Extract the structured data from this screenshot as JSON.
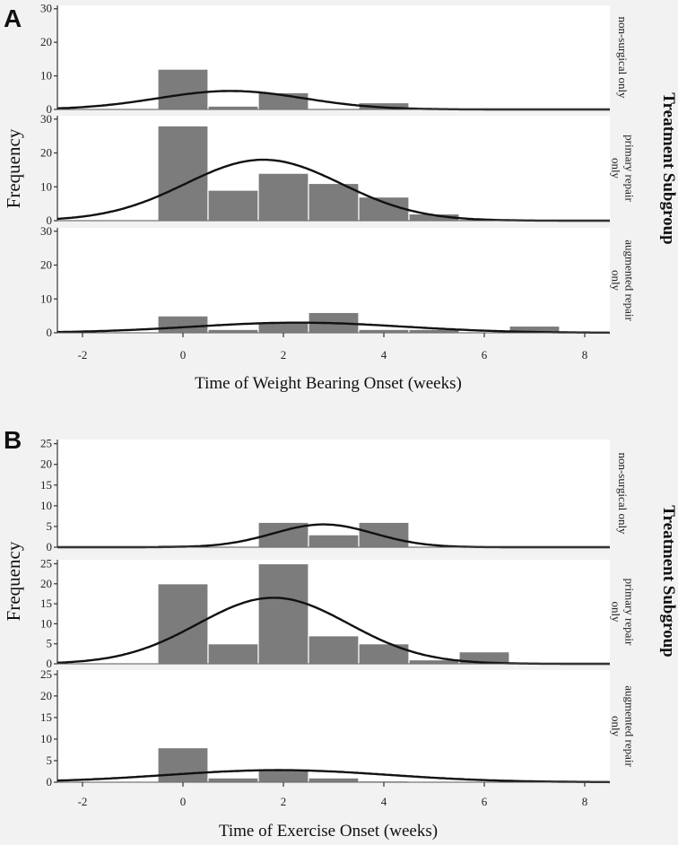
{
  "chart_data": [
    {
      "type": "bar",
      "panel_label": "A",
      "xlabel": "Time of Weight Bearing Onset (weeks)",
      "ylabel": "Frequency",
      "group_title": "Treatment Subgroup",
      "xlim": [
        -2.5,
        8.5
      ],
      "ylim": [
        0,
        31
      ],
      "xticks": [
        -2,
        0,
        2,
        4,
        6,
        8
      ],
      "yticks": [
        0,
        10,
        20,
        30
      ],
      "bin_width": 1,
      "facets": [
        {
          "label_lines": [
            "non-surgical only"
          ],
          "bins": [
            {
              "x": 0,
              "value": 12
            },
            {
              "x": 1,
              "value": 1
            },
            {
              "x": 2,
              "value": 5
            },
            {
              "x": 4,
              "value": 2
            }
          ],
          "normal_curve": {
            "mean": 0.95,
            "sd": 1.45,
            "peak": 5.5
          }
        },
        {
          "label_lines": [
            "primary repair",
            "only"
          ],
          "bins": [
            {
              "x": 0,
              "value": 28
            },
            {
              "x": 1,
              "value": 9
            },
            {
              "x": 2,
              "value": 14
            },
            {
              "x": 3,
              "value": 11
            },
            {
              "x": 4,
              "value": 7
            },
            {
              "x": 5,
              "value": 2
            },
            {
              "x": 6,
              "value": 0.4
            }
          ],
          "normal_curve": {
            "mean": 1.6,
            "sd": 1.55,
            "peak": 18
          }
        },
        {
          "label_lines": [
            "augmented repair",
            "only"
          ],
          "bins": [
            {
              "x": 0,
              "value": 5
            },
            {
              "x": 1,
              "value": 1
            },
            {
              "x": 2,
              "value": 3
            },
            {
              "x": 3,
              "value": 6
            },
            {
              "x": 4,
              "value": 1
            },
            {
              "x": 5,
              "value": 1
            },
            {
              "x": 7,
              "value": 2
            }
          ],
          "normal_curve": {
            "mean": 2.3,
            "sd": 2.1,
            "peak": 3
          }
        }
      ]
    },
    {
      "type": "bar",
      "panel_label": "B",
      "xlabel": "Time of Exercise Onset (weeks)",
      "ylabel": "Frequency",
      "group_title": "Treatment Subgroup",
      "xlim": [
        -2.5,
        8.5
      ],
      "ylim": [
        0,
        26
      ],
      "xticks": [
        -2,
        0,
        2,
        4,
        6,
        8
      ],
      "yticks": [
        0,
        5,
        10,
        15,
        20,
        25
      ],
      "bin_width": 1,
      "facets": [
        {
          "label_lines": [
            "non-surgical only"
          ],
          "bins": [
            {
              "x": 0,
              "value": 0.5
            },
            {
              "x": 2,
              "value": 6
            },
            {
              "x": 3,
              "value": 3
            },
            {
              "x": 4,
              "value": 6
            }
          ],
          "normal_curve": {
            "mean": 2.8,
            "sd": 1.0,
            "peak": 5.5
          }
        },
        {
          "label_lines": [
            "primary repair",
            "only"
          ],
          "bins": [
            {
              "x": 0,
              "value": 20
            },
            {
              "x": 1,
              "value": 5
            },
            {
              "x": 2,
              "value": 25
            },
            {
              "x": 3,
              "value": 7
            },
            {
              "x": 4,
              "value": 5
            },
            {
              "x": 5,
              "value": 1
            },
            {
              "x": 6,
              "value": 3
            }
          ],
          "normal_curve": {
            "mean": 1.8,
            "sd": 1.5,
            "peak": 16.5
          }
        },
        {
          "label_lines": [
            "augmented repair",
            "only"
          ],
          "bins": [
            {
              "x": 0,
              "value": 8
            },
            {
              "x": 1,
              "value": 1
            },
            {
              "x": 2,
              "value": 3
            },
            {
              "x": 3,
              "value": 1
            },
            {
              "x": 4,
              "value": 0.3
            }
          ],
          "normal_curve": {
            "mean": 1.9,
            "sd": 2.2,
            "peak": 2.8
          }
        }
      ]
    }
  ]
}
